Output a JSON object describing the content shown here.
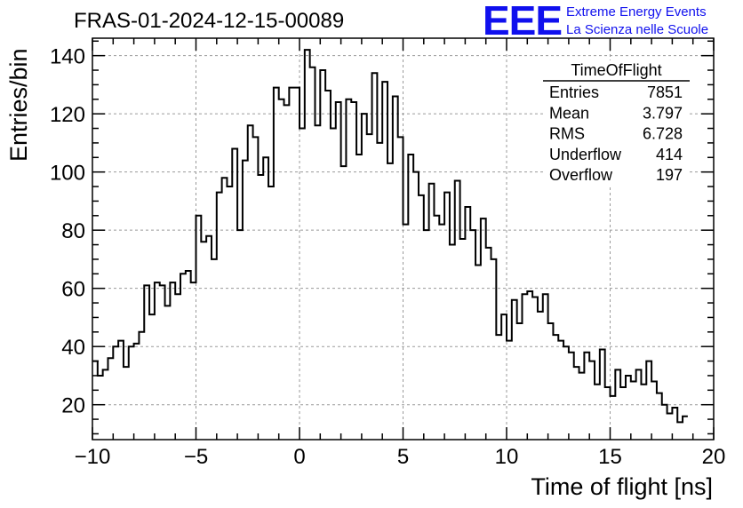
{
  "header": {
    "title": "FRAS-01-2024-12-15-00089",
    "logo_text": "EEE",
    "logo_line1": "Extreme Energy Events",
    "logo_line2": "La Scienza nelle Scuole",
    "logo_color": "#1010ee"
  },
  "stats_box": {
    "title": "TimeOfFlight",
    "rows": [
      {
        "label": "Entries",
        "value": "7851"
      },
      {
        "label": "Mean",
        "value": "3.797"
      },
      {
        "label": "RMS",
        "value": "6.728"
      },
      {
        "label": "Underflow",
        "value": "414"
      },
      {
        "label": "Overflow",
        "value": "197"
      }
    ]
  },
  "chart_data": {
    "type": "histogram",
    "xlabel": "Time of flight [ns]",
    "ylabel": "Entries/bin",
    "xlim": [
      -10,
      20
    ],
    "ylim": [
      8,
      146
    ],
    "x_ticks": [
      -10,
      -5,
      0,
      5,
      10,
      15,
      20
    ],
    "y_ticks": [
      20,
      40,
      60,
      80,
      100,
      120,
      140
    ],
    "grid": true,
    "line_color": "#000000",
    "bin_edges_start": -10,
    "bin_width": 0.25,
    "values": [
      35,
      30,
      32,
      36,
      40,
      42,
      33,
      40,
      41,
      45,
      61,
      51,
      62,
      61,
      54,
      62,
      58,
      65,
      66,
      62,
      85,
      76,
      78,
      70,
      93,
      98,
      95,
      108,
      80,
      104,
      116,
      112,
      99,
      105,
      95,
      129,
      125,
      123,
      129,
      129,
      115,
      142,
      136,
      116,
      135,
      128,
      115,
      124,
      102,
      125,
      124,
      106,
      120,
      113,
      134,
      110,
      131,
      103,
      126,
      112,
      82,
      106,
      100,
      92,
      80,
      96,
      85,
      82,
      93,
      75,
      97,
      77,
      88,
      80,
      68,
      84,
      74,
      70,
      44,
      51,
      42,
      56,
      48,
      58,
      59,
      57,
      52,
      58,
      48,
      44,
      42,
      40,
      38,
      33,
      31,
      38,
      35,
      27,
      39,
      26,
      23,
      32,
      26,
      30,
      28,
      32,
      27,
      35,
      28,
      24,
      20,
      17,
      19,
      14,
      16
    ]
  }
}
